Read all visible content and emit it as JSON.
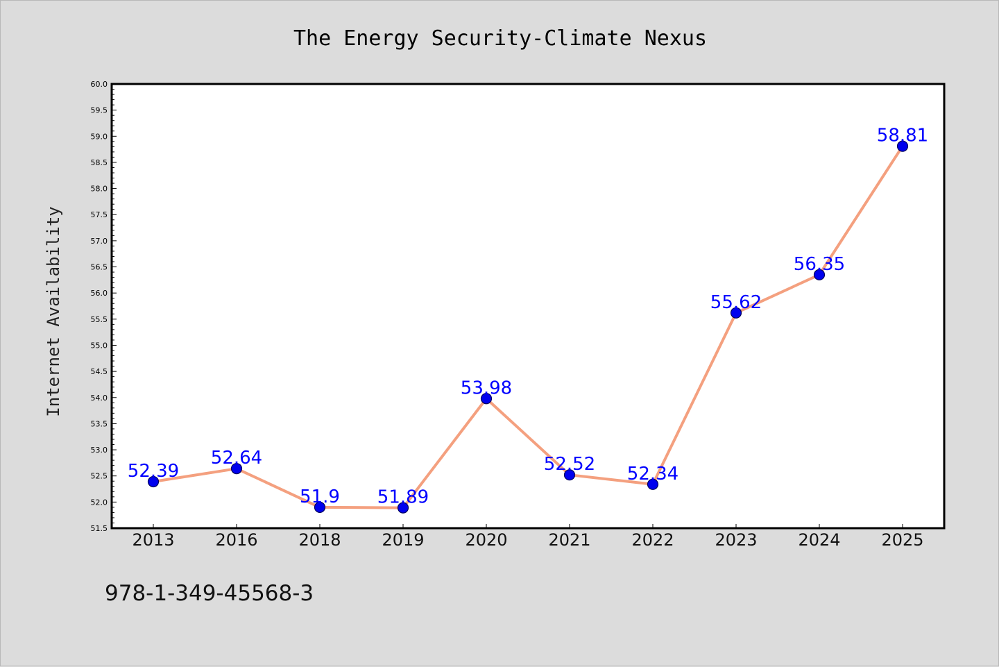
{
  "chart_data": {
    "type": "line",
    "title": "The Energy Security-Climate Nexus",
    "xlabel": "",
    "ylabel": "Internet Availability",
    "categories": [
      "2013",
      "2016",
      "2018",
      "2019",
      "2020",
      "2021",
      "2022",
      "2023",
      "2024",
      "2025"
    ],
    "values": [
      52.39,
      52.64,
      51.9,
      51.89,
      53.98,
      52.52,
      52.34,
      55.62,
      56.35,
      58.81
    ],
    "data_labels": [
      "52.39",
      "52.64",
      "51.9",
      "51.89",
      "53.98",
      "52.52",
      "52.34",
      "55.62",
      "56.35",
      "58.81"
    ],
    "ylim": [
      51.5,
      60.0
    ],
    "yticks": [
      "51.5",
      "52.0",
      "52.5",
      "53.0",
      "53.5",
      "54.0",
      "54.5",
      "55.0",
      "55.5",
      "56.0",
      "56.5",
      "57.0",
      "57.5",
      "58.0",
      "58.5",
      "59.0",
      "59.5",
      "60.0"
    ],
    "grid": false,
    "line_color": "#f4a07f",
    "marker_color": "#0000ee",
    "label_color": "#0000ff",
    "background": "#dcdcdc",
    "plot_background": "#ffffff"
  },
  "footer": {
    "text": "978-1-349-45568-3"
  }
}
